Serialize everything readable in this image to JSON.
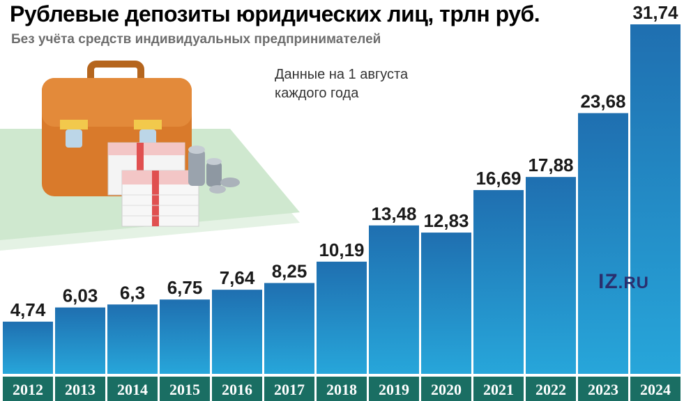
{
  "header": {
    "title": "Рублевые депозиты юридических лиц, трлн руб.",
    "subtitle": "Без учёта средств индивидуальных предпринимателей",
    "note_line1": "Данные на 1 августа",
    "note_line2": "каждого года"
  },
  "logo": {
    "main": "IZ",
    "suffix": ".RU"
  },
  "colors": {
    "bar_top": "#1f6fb0",
    "bar_bottom": "#27a6da",
    "axis_band": "#1a6e63",
    "axis_text": "#ffffff",
    "label_text": "#1a1a1a"
  },
  "icons": [
    "briefcase-icon",
    "banknote-stack-icon",
    "coin-stack-icon"
  ],
  "chart_data": {
    "type": "bar",
    "title": "Рублевые депозиты юридических лиц, трлн руб.",
    "subtitle": "Без учёта средств индивидуальных предпринимателей",
    "categories": [
      "2012",
      "2013",
      "2014",
      "2015",
      "2016",
      "2017",
      "2018",
      "2019",
      "2020",
      "2021",
      "2022",
      "2023",
      "2024"
    ],
    "values": [
      4.74,
      6.03,
      6.3,
      6.75,
      7.64,
      8.25,
      10.19,
      13.48,
      12.83,
      16.69,
      17.88,
      23.68,
      31.74
    ],
    "value_labels": [
      "4,74",
      "6,03",
      "6,3",
      "6,75",
      "7,64",
      "8,25",
      "10,19",
      "13,48",
      "12,83",
      "16,69",
      "17,88",
      "23,68",
      "31,74"
    ],
    "ylim": [
      0,
      31.74
    ],
    "grid": false,
    "legend": "none"
  }
}
